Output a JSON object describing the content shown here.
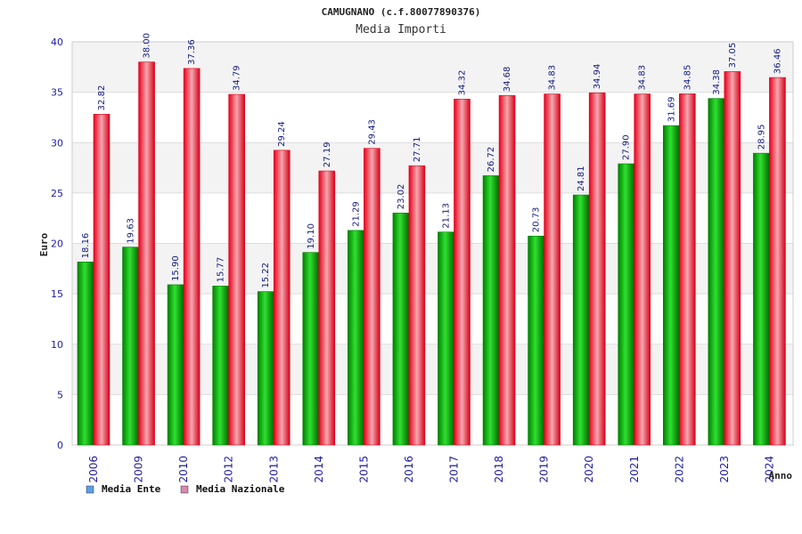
{
  "chart_data": {
    "type": "bar",
    "title": "CAMUGNANO (c.f.80077890376)",
    "subtitle": "Media Importi",
    "xlabel": "Anno",
    "ylabel": "Euro",
    "ylim": [
      0,
      40
    ],
    "yticks": [
      "0",
      "5",
      "10",
      "15",
      "20",
      "25",
      "30",
      "35",
      "40"
    ],
    "grid": true,
    "legend_position": "bottom-left",
    "categories": [
      "2006",
      "2009",
      "2010",
      "2012",
      "2013",
      "2014",
      "2015",
      "2016",
      "2017",
      "2018",
      "2019",
      "2020",
      "2021",
      "2022",
      "2023",
      "2024"
    ],
    "series": [
      {
        "name": "Media Ente",
        "values": [
          18.16,
          19.63,
          15.9,
          15.77,
          15.22,
          19.1,
          21.29,
          23.02,
          21.13,
          26.72,
          20.73,
          24.81,
          27.9,
          31.69,
          34.38,
          28.95
        ],
        "labels": [
          "18.16",
          "19.63",
          "15.90",
          "15.77",
          "15.22",
          "19.10",
          "21.29",
          "23.02",
          "21.13",
          "26.72",
          "20.73",
          "24.81",
          "27.90",
          "31.69",
          "34.38",
          "28.95"
        ]
      },
      {
        "name": "Media Nazionale",
        "values": [
          32.82,
          38.0,
          37.36,
          34.79,
          29.24,
          27.19,
          29.43,
          27.71,
          34.32,
          34.68,
          34.83,
          34.94,
          34.83,
          34.85,
          37.05,
          36.46
        ],
        "labels": [
          "32.82",
          "38.00",
          "37.36",
          "34.79",
          "29.24",
          "27.19",
          "29.43",
          "27.71",
          "34.32",
          "34.68",
          "34.83",
          "34.94",
          "34.83",
          "34.85",
          "37.05",
          "36.46"
        ]
      }
    ]
  },
  "colors": {
    "ente_dark": "#007a00",
    "ente_light": "#33e233",
    "naz_dark": "#e0001a",
    "naz_light": "#f2a0a8",
    "legend_ente": "#5aa0e6",
    "legend_naz": "#d98aa8"
  }
}
